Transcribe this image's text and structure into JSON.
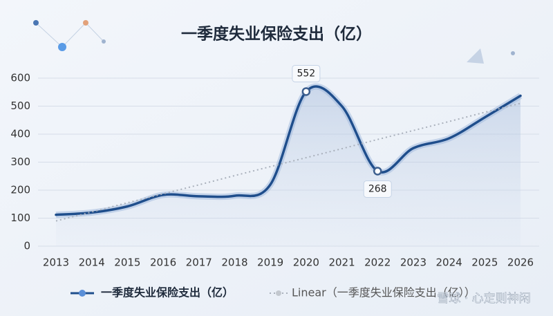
{
  "chart_data": {
    "type": "line",
    "title": "一季度失业保险支出（亿）",
    "categories": [
      "2013",
      "2014",
      "2015",
      "2016",
      "2017",
      "2018",
      "2019",
      "2020",
      "2021",
      "2022",
      "2023",
      "2024",
      "2025",
      "2026"
    ],
    "series": [
      {
        "name": "一季度失业保险支出（亿）",
        "color": "#1f4e8c",
        "values": [
          112,
          120,
          142,
          183,
          178,
          180,
          220,
          552,
          500,
          268,
          350,
          385,
          460,
          537
        ],
        "value_labels": [
          null,
          null,
          null,
          null,
          null,
          null,
          null,
          "552",
          null,
          "268",
          null,
          null,
          null,
          null
        ]
      },
      {
        "name": "Linear（一季度失业保险支出（亿））",
        "color": "#a9b0bb",
        "dashed": true,
        "values": [
          90,
          122,
          155,
          187,
          219,
          252,
          284,
          316,
          348,
          381,
          413,
          445,
          478,
          510
        ]
      }
    ],
    "ylim": [
      0,
      600
    ],
    "yticks": [
      0,
      100,
      200,
      300,
      400,
      500,
      600
    ],
    "grid": true,
    "watermark": "雪球 · 心定则神闲"
  }
}
